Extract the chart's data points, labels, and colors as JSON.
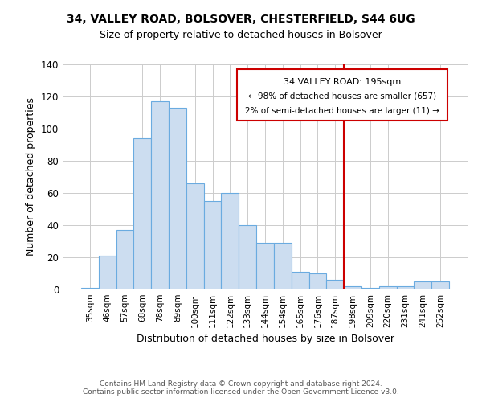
{
  "title1": "34, VALLEY ROAD, BOLSOVER, CHESTERFIELD, S44 6UG",
  "title2": "Size of property relative to detached houses in Bolsover",
  "xlabel": "Distribution of detached houses by size in Bolsover",
  "ylabel": "Number of detached properties",
  "categories": [
    "35sqm",
    "46sqm",
    "57sqm",
    "68sqm",
    "78sqm",
    "89sqm",
    "100sqm",
    "111sqm",
    "122sqm",
    "133sqm",
    "144sqm",
    "154sqm",
    "165sqm",
    "176sqm",
    "187sqm",
    "198sqm",
    "209sqm",
    "220sqm",
    "231sqm",
    "241sqm",
    "252sqm"
  ],
  "values": [
    1,
    21,
    37,
    94,
    117,
    113,
    66,
    55,
    60,
    40,
    29,
    29,
    11,
    10,
    6,
    2,
    1,
    2,
    2,
    5,
    5
  ],
  "bar_color": "#ccddf0",
  "bar_edge_color": "#6aabe0",
  "grid_color": "#cccccc",
  "vline_color": "#cc0000",
  "annotation_title": "34 VALLEY ROAD: 195sqm",
  "annotation_line1": "← 98% of detached houses are smaller (657)",
  "annotation_line2": "2% of semi-detached houses are larger (11) →",
  "annotation_box_color": "#cc0000",
  "footnote1": "Contains HM Land Registry data © Crown copyright and database right 2024.",
  "footnote2": "Contains public sector information licensed under the Open Government Licence v3.0.",
  "ylim": [
    0,
    140
  ],
  "yticks": [
    0,
    20,
    40,
    60,
    80,
    100,
    120,
    140
  ]
}
